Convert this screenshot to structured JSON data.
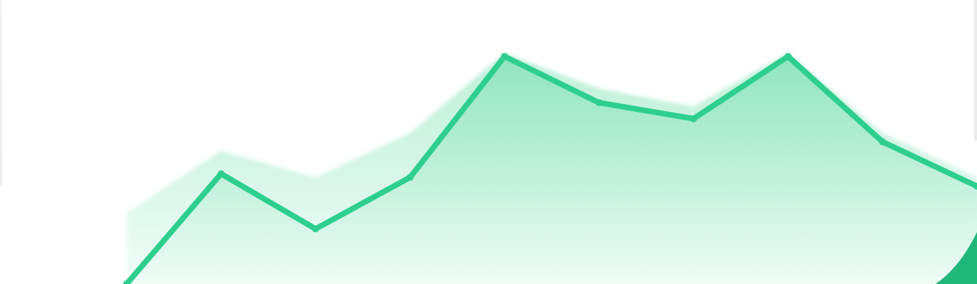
{
  "chart_data": {
    "type": "area",
    "title": "",
    "xlabel": "",
    "ylabel": "",
    "grid": false,
    "x": [
      1,
      2,
      3,
      4,
      5,
      6,
      7,
      8,
      9,
      10
    ],
    "series": [
      {
        "values": [
          0,
          62,
          31,
          60,
          128,
          102,
          93,
          128,
          80,
          55
        ],
        "color": "#2ecf8e"
      }
    ],
    "secondary_area_top": [
      40,
      75,
      60,
      85,
      130,
      110,
      100,
      130,
      85,
      60
    ],
    "ylim": [
      0,
      140
    ]
  },
  "colors": {
    "line": "#2ecf8e",
    "area_top": "#8fe5c0",
    "area_bottom": "#eafaf2",
    "corner_accent": "#20b87a"
  }
}
